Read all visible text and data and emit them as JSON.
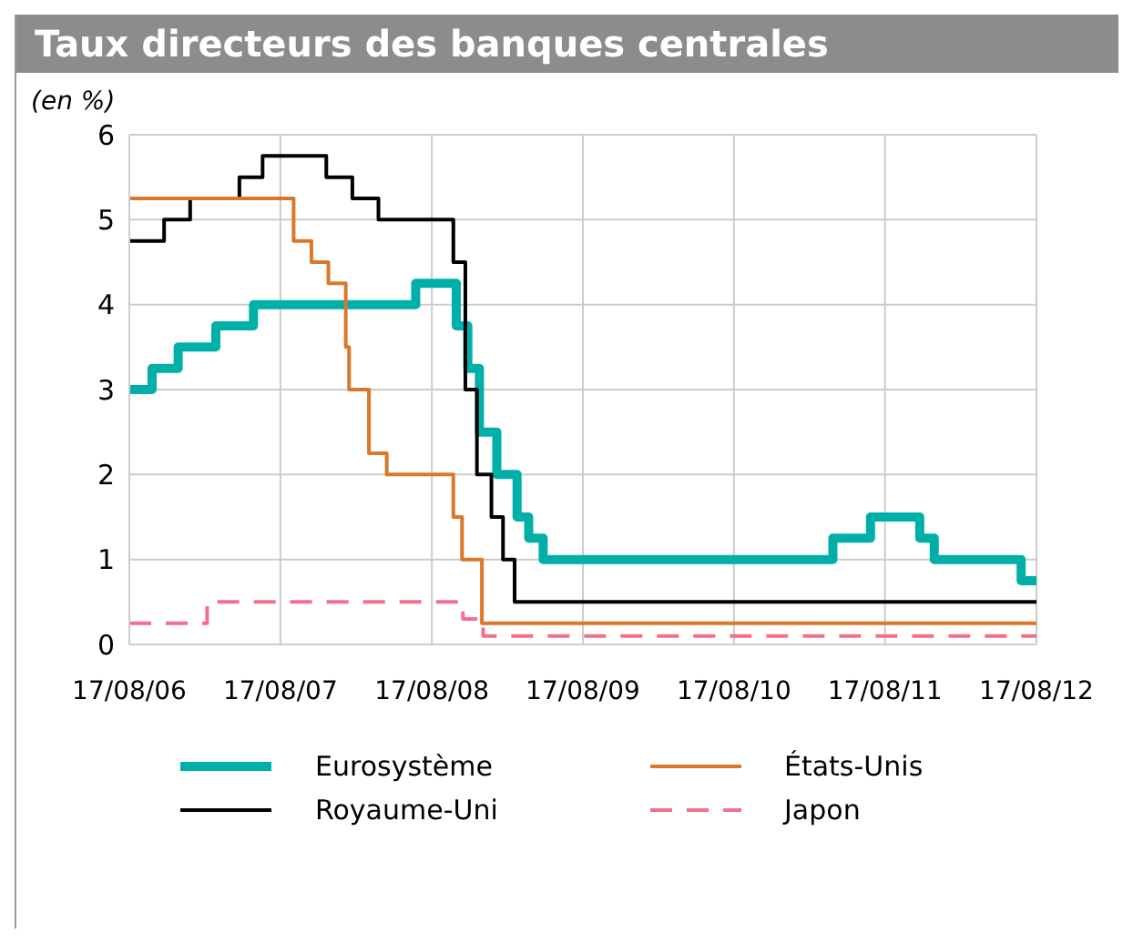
{
  "chart_data": {
    "type": "step",
    "title": "Taux directeurs des banques centrales",
    "ylabel": "(en %)",
    "xlim": [
      "2006-08-17",
      "2012-08-17"
    ],
    "xticks": [
      {
        "value": "2006-08-17",
        "label": "17/08/06"
      },
      {
        "value": "2007-08-17",
        "label": "17/08/07"
      },
      {
        "value": "2008-08-17",
        "label": "17/08/08"
      },
      {
        "value": "2009-08-17",
        "label": "17/08/09"
      },
      {
        "value": "2010-08-17",
        "label": "17/08/10"
      },
      {
        "value": "2011-08-17",
        "label": "17/08/11"
      },
      {
        "value": "2012-08-17",
        "label": "17/08/12"
      }
    ],
    "ylim": [
      0,
      6
    ],
    "yticks": [
      0,
      1,
      2,
      3,
      4,
      5,
      6
    ],
    "grid": true,
    "legend": "bottom",
    "line_style": "solid",
    "series": [
      {
        "name": "Eurosystème",
        "color": "#00b0a8",
        "x": [
          "2006-08-17",
          "2006-10-11",
          "2006-12-13",
          "2007-03-14",
          "2007-06-13",
          "2008-07-09",
          "2008-10-15",
          "2008-11-12",
          "2008-12-10",
          "2009-01-21",
          "2009-03-11",
          "2009-04-08",
          "2009-05-13",
          "2011-04-13",
          "2011-07-13",
          "2011-11-09",
          "2011-12-14",
          "2012-07-11",
          "2012-08-17"
        ],
        "values": [
          3,
          3.25,
          3.5,
          3.75,
          4,
          4.25,
          3.75,
          3.25,
          2.5,
          2,
          1.5,
          1.25,
          1,
          1.25,
          1.5,
          1.25,
          1,
          0.75,
          0.75
        ]
      },
      {
        "name": "Royaume-Uni",
        "color": "#000000",
        "x": [
          "2006-08-17",
          "2006-11-09",
          "2007-01-11",
          "2007-05-10",
          "2007-07-05",
          "2007-12-06",
          "2008-02-07",
          "2008-04-10",
          "2008-10-08",
          "2008-11-06",
          "2008-12-04",
          "2009-01-08",
          "2009-02-05",
          "2009-03-05",
          "2012-08-17"
        ],
        "values": [
          4.75,
          5,
          5.25,
          5.5,
          5.75,
          5.5,
          5.25,
          5,
          4.5,
          3,
          2,
          1.5,
          1,
          0.5,
          0.5
        ]
      },
      {
        "name": "États-Unis",
        "color": "#d9782a",
        "x": [
          "2006-08-17",
          "2007-09-18",
          "2007-10-31",
          "2007-12-11",
          "2008-01-22",
          "2008-01-30",
          "2008-03-18",
          "2008-04-30",
          "2008-10-08",
          "2008-10-29",
          "2008-12-16",
          "2012-08-17"
        ],
        "values": [
          5.25,
          4.75,
          4.5,
          4.25,
          3.5,
          3,
          2.25,
          2,
          1.5,
          1,
          0.25,
          0.25
        ]
      },
      {
        "name": "Japon",
        "color": "#f07090",
        "line_style": "dashed",
        "x": [
          "2006-08-17",
          "2007-02-21",
          "2008-10-31",
          "2008-12-19",
          "2012-08-17"
        ],
        "values": [
          0.25,
          0.5,
          0.3,
          0.1,
          0.1
        ]
      }
    ]
  }
}
